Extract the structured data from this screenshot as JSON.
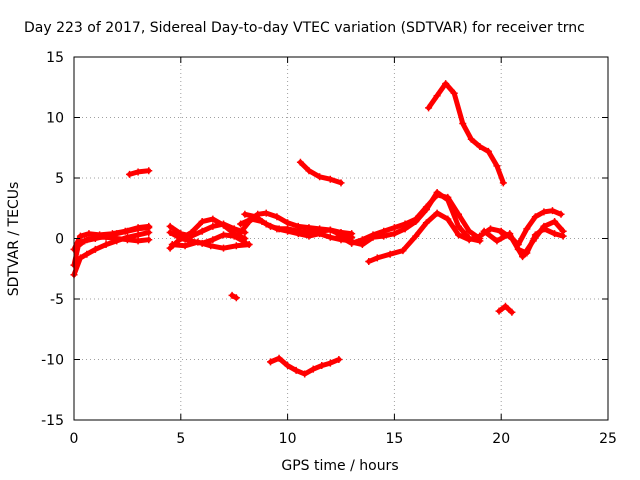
{
  "chart_data": {
    "type": "scatter",
    "title": "Day 223 of 2017, Sidereal Day-to-day VTEC variation (SDTVAR) for receiver trnc",
    "xlabel": "GPS time / hours",
    "ylabel": "SDTVAR / TECUs",
    "xlim": [
      0,
      25
    ],
    "ylim": [
      -15,
      15
    ],
    "xticks": [
      0,
      5,
      10,
      15,
      20,
      25
    ],
    "yticks": [
      -15,
      -10,
      -5,
      0,
      5,
      10,
      15
    ],
    "xtick_labels": [
      "0",
      "5",
      "10",
      "15",
      "20",
      "25"
    ],
    "ytick_labels": [
      "-15",
      "-10",
      "-5",
      "0",
      "5",
      "10",
      "15"
    ],
    "grid": true,
    "color": "#ff0000",
    "series": [
      {
        "name": "trace-a",
        "x": [
          0.0,
          0.3,
          0.6,
          1.0,
          1.5,
          2.0,
          2.5,
          3.0,
          3.5
        ],
        "y": [
          -3.0,
          -1.6,
          -1.3,
          -0.9,
          -0.5,
          -0.2,
          0.1,
          0.3,
          0.5
        ]
      },
      {
        "name": "trace-b",
        "x": [
          0.0,
          0.2,
          0.5,
          1.0,
          1.5,
          2.0,
          2.5,
          3.0,
          3.5
        ],
        "y": [
          -2.2,
          -0.6,
          -0.2,
          0.0,
          0.2,
          0.4,
          0.6,
          0.8,
          0.9
        ]
      },
      {
        "name": "trace-c",
        "x": [
          0.0,
          0.3,
          0.7,
          1.2,
          1.8,
          2.4,
          3.0,
          3.5
        ],
        "y": [
          -0.9,
          0.2,
          0.4,
          0.3,
          0.4,
          0.6,
          0.9,
          1.0
        ]
      },
      {
        "name": "trace-d",
        "x": [
          0.2,
          0.6,
          1.0,
          1.5,
          2.0,
          2.5,
          3.0,
          3.5
        ],
        "y": [
          -0.4,
          -0.1,
          0.1,
          0.1,
          0.0,
          -0.1,
          -0.2,
          -0.1
        ]
      },
      {
        "name": "trace-e",
        "x": [
          2.6,
          3.0,
          3.5
        ],
        "y": [
          5.3,
          5.5,
          5.6
        ]
      },
      {
        "name": "trace-f",
        "x": [
          4.5,
          5.0,
          5.5,
          6.0,
          6.5,
          7.0,
          7.5,
          8.0
        ],
        "y": [
          -0.8,
          0.0,
          0.5,
          1.4,
          1.6,
          1.1,
          0.4,
          0.0
        ]
      },
      {
        "name": "trace-g",
        "x": [
          4.5,
          5.0,
          5.5,
          6.0,
          6.5,
          7.0,
          7.5,
          8.0
        ],
        "y": [
          0.5,
          0.0,
          -0.2,
          -0.4,
          -0.1,
          0.3,
          0.2,
          -0.3
        ]
      },
      {
        "name": "trace-h",
        "x": [
          4.5,
          5.0,
          5.5,
          6.0,
          6.5,
          7.0,
          7.5,
          8.0
        ],
        "y": [
          1.0,
          0.4,
          0.2,
          0.6,
          1.0,
          1.2,
          0.8,
          0.5
        ]
      },
      {
        "name": "trace-i",
        "x": [
          4.6,
          5.2,
          5.8,
          6.4,
          7.0,
          7.6,
          8.2
        ],
        "y": [
          -0.5,
          -0.6,
          -0.3,
          -0.6,
          -0.8,
          -0.6,
          -0.5
        ]
      },
      {
        "name": "trace-j",
        "x": [
          7.4,
          7.6
        ],
        "y": [
          -4.7,
          -4.9
        ]
      },
      {
        "name": "trace-k",
        "x": [
          7.8,
          8.2,
          8.6,
          9.0,
          9.5,
          10.0,
          10.5,
          11.0,
          11.5,
          12.0,
          12.5,
          13.0
        ],
        "y": [
          0.5,
          1.4,
          2.0,
          2.1,
          1.8,
          1.3,
          1.0,
          0.9,
          0.8,
          0.7,
          0.5,
          0.4
        ]
      },
      {
        "name": "trace-l",
        "x": [
          7.8,
          8.3,
          8.8,
          9.2,
          9.6,
          10.0,
          10.5,
          11.0,
          11.5,
          12.0,
          12.5,
          13.0
        ],
        "y": [
          1.2,
          1.6,
          1.4,
          1.0,
          0.8,
          0.8,
          0.6,
          0.5,
          0.6,
          0.7,
          0.3,
          0.1
        ]
      },
      {
        "name": "trace-m",
        "x": [
          8.0,
          8.5,
          9.0,
          9.5,
          10.0,
          10.5,
          11.0,
          11.5,
          12.0,
          12.5,
          13.0
        ],
        "y": [
          2.0,
          1.8,
          1.2,
          0.8,
          0.6,
          0.4,
          0.2,
          0.4,
          0.1,
          -0.1,
          -0.2
        ]
      },
      {
        "name": "trace-n",
        "x": [
          9.2,
          9.6,
          10.0,
          10.4,
          10.8,
          11.2,
          11.6,
          12.0,
          12.4
        ],
        "y": [
          -10.2,
          -9.9,
          -10.5,
          -10.9,
          -11.2,
          -10.8,
          -10.5,
          -10.3,
          -10.0
        ]
      },
      {
        "name": "trace-o",
        "x": [
          10.6,
          11.0,
          11.5,
          12.0,
          12.5
        ],
        "y": [
          6.3,
          5.6,
          5.1,
          4.9,
          4.6
        ]
      },
      {
        "name": "trace-p",
        "x": [
          12.4,
          13.0,
          13.5,
          14.0,
          14.5,
          15.0,
          15.5,
          16.0,
          16.5,
          17.0,
          17.5,
          18.0,
          18.5,
          19.0
        ],
        "y": [
          0.2,
          -0.4,
          -0.1,
          0.3,
          0.6,
          0.9,
          1.2,
          1.6,
          2.6,
          3.6,
          3.4,
          2.0,
          0.6,
          0.0
        ]
      },
      {
        "name": "trace-q",
        "x": [
          13.0,
          13.5,
          14.0,
          14.5,
          15.0,
          15.5,
          16.0,
          16.5,
          17.0,
          17.5,
          18.0,
          18.5,
          19.0
        ],
        "y": [
          -0.3,
          -0.5,
          0.1,
          0.2,
          0.4,
          0.8,
          1.4,
          2.4,
          3.8,
          3.2,
          1.0,
          0.0,
          -0.2
        ]
      },
      {
        "name": "trace-r",
        "x": [
          13.8,
          14.2,
          14.8,
          15.4,
          16.0,
          16.5,
          17.0,
          17.5,
          18.0,
          18.5,
          19.0
        ],
        "y": [
          -1.9,
          -1.6,
          -1.3,
          -1.0,
          0.2,
          1.3,
          2.1,
          1.6,
          0.3,
          -0.1,
          0.2
        ]
      },
      {
        "name": "trace-s",
        "x": [
          16.6,
          17.0,
          17.4,
          17.8,
          18.2,
          18.6,
          19.0,
          19.4,
          19.8,
          20.1
        ],
        "y": [
          10.8,
          11.8,
          12.8,
          12.0,
          9.5,
          8.2,
          7.6,
          7.2,
          6.0,
          4.6
        ]
      },
      {
        "name": "trace-t",
        "x": [
          19.0,
          19.5,
          20.0,
          20.5,
          21.0,
          21.5,
          22.0,
          22.5,
          22.9
        ],
        "y": [
          0.2,
          0.8,
          0.6,
          0.0,
          -1.5,
          -0.2,
          1.0,
          1.4,
          0.6
        ]
      },
      {
        "name": "trace-u",
        "x": [
          19.2,
          19.8,
          20.4,
          20.8,
          21.2,
          21.6,
          22.0,
          22.5,
          22.9
        ],
        "y": [
          0.6,
          -0.2,
          0.4,
          -0.9,
          -1.2,
          0.3,
          0.8,
          0.4,
          0.2
        ]
      },
      {
        "name": "trace-v",
        "x": [
          20.0,
          20.4,
          20.8,
          21.2,
          21.6,
          22.0,
          22.4,
          22.8
        ],
        "y": [
          0.5,
          0.2,
          -0.5,
          0.8,
          1.8,
          2.2,
          2.3,
          2.0
        ]
      },
      {
        "name": "trace-w",
        "x": [
          19.9,
          20.2,
          20.5
        ],
        "y": [
          -6.0,
          -5.6,
          -6.1
        ]
      }
    ]
  }
}
